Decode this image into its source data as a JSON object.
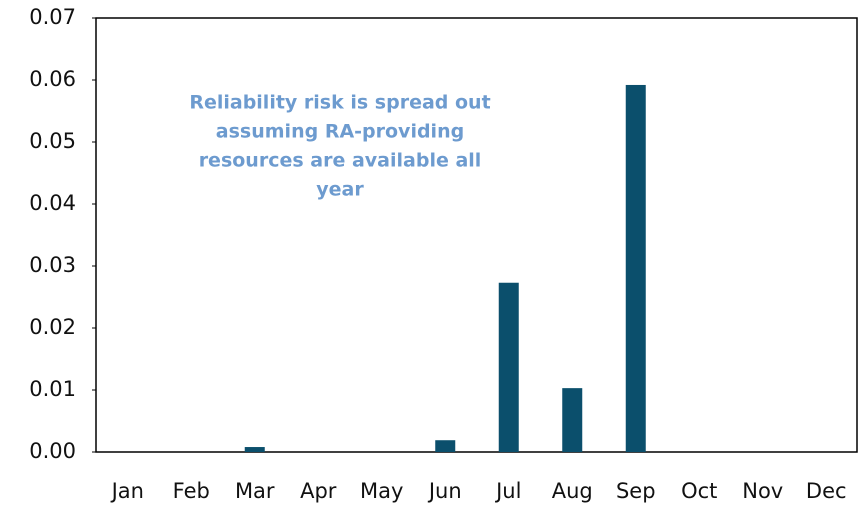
{
  "chart_data": {
    "type": "bar",
    "annotation": [
      "Reliability risk is spread out",
      "assuming RA-providing",
      "resources are available all",
      "year"
    ],
    "categories": [
      "Jan",
      "Feb",
      "Mar",
      "Apr",
      "May",
      "Jun",
      "Jul",
      "Aug",
      "Sep",
      "Oct",
      "Nov",
      "Dec"
    ],
    "values": [
      0,
      0,
      0.0008,
      0,
      0,
      0.0019,
      0.0273,
      0.0103,
      0.0592,
      0,
      0,
      0
    ],
    "color": "#0b4f6c",
    "ylim": [
      0,
      0.07
    ],
    "yticks": [
      {
        "value": 0,
        "label": "0.00"
      },
      0.01,
      0.02,
      0.03,
      0.04,
      0.05,
      0.06,
      0.07
    ],
    "grid": false
  }
}
